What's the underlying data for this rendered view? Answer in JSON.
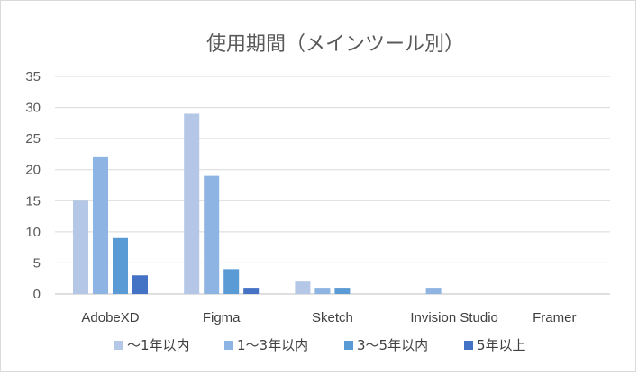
{
  "chart_data": {
    "type": "bar",
    "title": "使用期間（メインツール別）",
    "xlabel": "",
    "ylabel": "",
    "categories": [
      "AdobeXD",
      "Figma",
      "Sketch",
      "Invision Studio",
      "Framer"
    ],
    "series": [
      {
        "name": "～1年以内",
        "values": [
          15,
          29,
          2,
          0,
          0
        ]
      },
      {
        "name": "1～3年以内",
        "values": [
          22,
          19,
          1,
          1,
          0
        ]
      },
      {
        "name": "3～5年以内",
        "values": [
          9,
          4,
          1,
          0,
          0
        ]
      },
      {
        "name": "5年以上",
        "values": [
          3,
          1,
          0,
          0,
          0
        ]
      }
    ],
    "ylim": [
      0,
      35
    ],
    "yticks": [
      0,
      5,
      10,
      15,
      20,
      25,
      30,
      35
    ],
    "grid": true,
    "legend_position": "bottom",
    "colors": [
      "#b4c7e7",
      "#8eb4e3",
      "#5b9bd5",
      "#4472c4"
    ]
  }
}
